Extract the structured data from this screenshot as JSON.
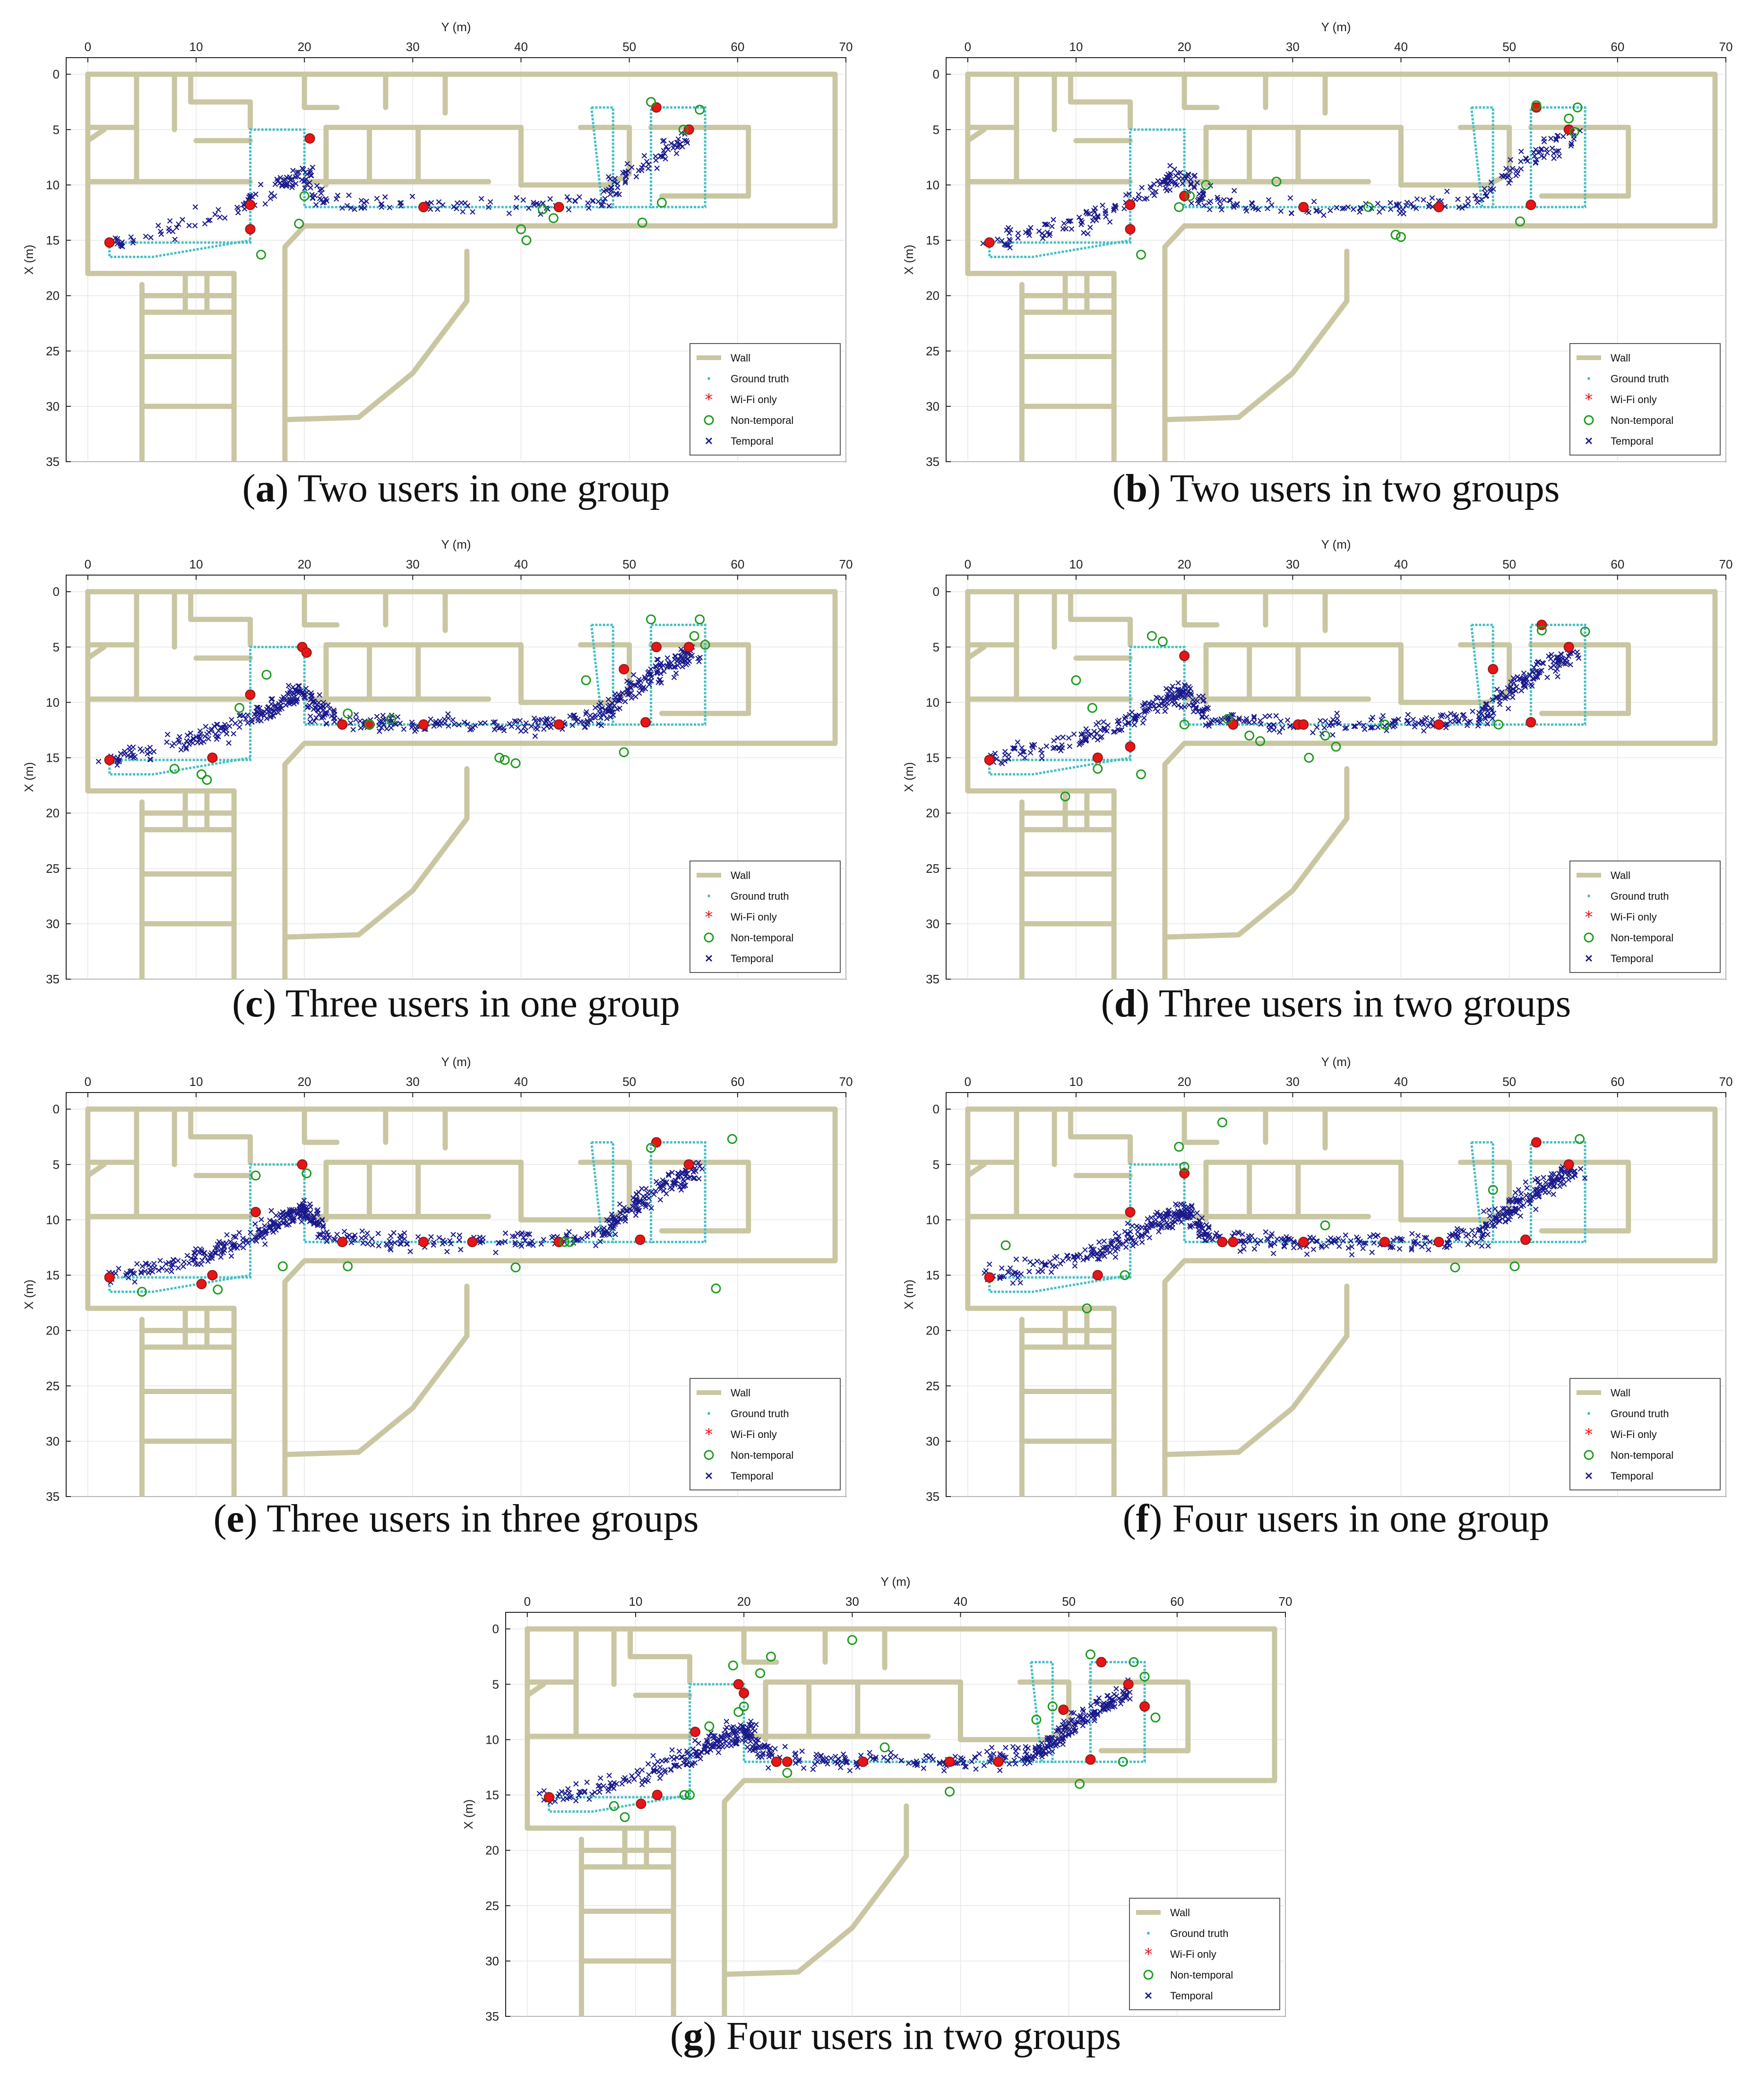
{
  "legend": [
    "Wall",
    "Ground truth",
    "Wi-Fi only",
    "Non-temporal",
    "Temporal"
  ],
  "colors": {
    "wall": "#c9c6a2",
    "ground_truth": "#45bfc6",
    "wifi_only": "#e8141a",
    "non_temporal": "#1c9a1c",
    "temporal": "#1a1a8c"
  },
  "chart_data": [
    {
      "type": "scatter",
      "caption_letter": "a",
      "caption_text": "Two users in one group",
      "xlabel": "Y (m)",
      "ylabel": "X (m)",
      "xlim": [
        -2,
        70
      ],
      "ylim": [
        35,
        -1.5
      ],
      "xticks": [
        "0",
        "10",
        "20",
        "30",
        "40",
        "50",
        "60",
        "70"
      ],
      "yticks": [
        "0",
        "5",
        "10",
        "15",
        "20",
        "25",
        "30",
        "35"
      ],
      "grid": true,
      "legend_position": "bottom-right",
      "series": [
        {
          "name": "Wi-Fi only",
          "points": [
            [
              2,
              15.2
            ],
            [
              15,
              11.8
            ],
            [
              15,
              14
            ],
            [
              20.5,
              5.8
            ],
            [
              31,
              12
            ],
            [
              43.5,
              12
            ],
            [
              52.5,
              3
            ],
            [
              55.5,
              5
            ]
          ]
        },
        {
          "name": "Non-temporal",
          "points": [
            [
              16,
              16.3
            ],
            [
              19.5,
              13.5
            ],
            [
              20,
              11
            ],
            [
              40,
              14
            ],
            [
              40.5,
              15
            ],
            [
              42,
              12.2
            ],
            [
              43,
              13
            ],
            [
              52,
              2.5
            ],
            [
              55,
              5
            ],
            [
              56.5,
              3.2
            ],
            [
              51.2,
              13.4
            ],
            [
              53,
              11.6
            ]
          ]
        }
      ]
    },
    {
      "type": "scatter",
      "caption_letter": "b",
      "caption_text": "Two users in two groups",
      "xlabel": "Y (m)",
      "ylabel": "X (m)",
      "xlim": [
        -2,
        70
      ],
      "ylim": [
        35,
        -1.5
      ],
      "xticks": [
        "0",
        "10",
        "20",
        "30",
        "40",
        "50",
        "60",
        "70"
      ],
      "yticks": [
        "0",
        "5",
        "10",
        "15",
        "20",
        "25",
        "30",
        "35"
      ],
      "grid": true,
      "legend_position": "bottom-right",
      "series": [
        {
          "name": "Wi-Fi only",
          "points": [
            [
              2,
              15.2
            ],
            [
              15,
              11.8
            ],
            [
              15,
              14
            ],
            [
              20,
              11
            ],
            [
              31,
              12
            ],
            [
              43.5,
              12
            ],
            [
              52,
              11.8
            ],
            [
              52.5,
              3
            ],
            [
              55.5,
              5
            ]
          ]
        },
        {
          "name": "Non-temporal",
          "points": [
            [
              16,
              16.3
            ],
            [
              19.5,
              12
            ],
            [
              20.5,
              11
            ],
            [
              22,
              10
            ],
            [
              28.5,
              9.7
            ],
            [
              37,
              12
            ],
            [
              39.5,
              14.5
            ],
            [
              40,
              14.7
            ],
            [
              51,
              13.3
            ],
            [
              52.5,
              2.8
            ],
            [
              55.5,
              4
            ],
            [
              56.3,
              3
            ],
            [
              56,
              5.2
            ]
          ]
        }
      ]
    },
    {
      "type": "scatter",
      "caption_letter": "c",
      "caption_text": "Three users in one group",
      "xlabel": "Y (m)",
      "ylabel": "X (m)",
      "xlim": [
        -2,
        70
      ],
      "ylim": [
        35,
        -1.5
      ],
      "xticks": [
        "0",
        "10",
        "20",
        "30",
        "40",
        "50",
        "60",
        "70"
      ],
      "yticks": [
        "0",
        "5",
        "10",
        "15",
        "20",
        "25",
        "30",
        "35"
      ],
      "grid": true,
      "legend_position": "bottom-right",
      "series": [
        {
          "name": "Wi-Fi only",
          "points": [
            [
              2,
              15.2
            ],
            [
              11.5,
              15
            ],
            [
              15,
              9.3
            ],
            [
              19.8,
              5
            ],
            [
              20.2,
              5.5
            ],
            [
              23.5,
              12
            ],
            [
              26,
              12
            ],
            [
              31,
              12
            ],
            [
              43.5,
              12
            ],
            [
              49.5,
              7
            ],
            [
              51.5,
              11.8
            ],
            [
              52.5,
              5
            ],
            [
              55.5,
              5
            ]
          ]
        },
        {
          "name": "Non-temporal",
          "points": [
            [
              8,
              16
            ],
            [
              10.5,
              16.5
            ],
            [
              11,
              17
            ],
            [
              14,
              10.5
            ],
            [
              16.5,
              7.5
            ],
            [
              24,
              11
            ],
            [
              26,
              12
            ],
            [
              28,
              11.5
            ],
            [
              38,
              15
            ],
            [
              38.5,
              15.2
            ],
            [
              39.5,
              15.5
            ],
            [
              46,
              8
            ],
            [
              49.5,
              14.5
            ],
            [
              52,
              2.5
            ],
            [
              56,
              4
            ],
            [
              56.5,
              2.5
            ],
            [
              57,
              4.8
            ]
          ]
        }
      ]
    },
    {
      "type": "scatter",
      "caption_letter": "d",
      "caption_text": "Three users in two groups",
      "xlabel": "Y (m)",
      "ylabel": "X (m)",
      "xlim": [
        -2,
        70
      ],
      "ylim": [
        35,
        -1.5
      ],
      "xticks": [
        "0",
        "10",
        "20",
        "30",
        "40",
        "50",
        "60",
        "70"
      ],
      "yticks": [
        "0",
        "5",
        "10",
        "15",
        "20",
        "25",
        "30",
        "35"
      ],
      "grid": true,
      "legend_position": "bottom-right",
      "series": [
        {
          "name": "Wi-Fi only",
          "points": [
            [
              2,
              15.2
            ],
            [
              12,
              15
            ],
            [
              15,
              14
            ],
            [
              20,
              5.8
            ],
            [
              24.5,
              12
            ],
            [
              30.5,
              12
            ],
            [
              31,
              12
            ],
            [
              43.5,
              12
            ],
            [
              48.5,
              7
            ],
            [
              52,
              11.8
            ],
            [
              53,
              3
            ],
            [
              55.5,
              5
            ]
          ]
        },
        {
          "name": "Non-temporal",
          "points": [
            [
              10,
              8
            ],
            [
              11.5,
              10.5
            ],
            [
              12,
              16
            ],
            [
              9,
              18.5
            ],
            [
              16,
              16.5
            ],
            [
              17,
              4
            ],
            [
              18,
              4.5
            ],
            [
              20,
              12
            ],
            [
              24,
              11.5
            ],
            [
              26,
              13
            ],
            [
              27,
              13.5
            ],
            [
              31.5,
              15
            ],
            [
              33,
              13
            ],
            [
              34,
              14
            ],
            [
              38.5,
              12
            ],
            [
              49,
              12
            ],
            [
              53,
              3.5
            ],
            [
              57,
              3.6
            ]
          ]
        }
      ]
    },
    {
      "type": "scatter",
      "caption_letter": "e",
      "caption_text": "Three users in three groups",
      "xlabel": "Y (m)",
      "ylabel": "X (m)",
      "xlim": [
        -2,
        70
      ],
      "ylim": [
        35,
        -1.5
      ],
      "xticks": [
        "0",
        "10",
        "20",
        "30",
        "40",
        "50",
        "60",
        "70"
      ],
      "yticks": [
        "0",
        "5",
        "10",
        "15",
        "20",
        "25",
        "30",
        "35"
      ],
      "grid": true,
      "legend_position": "bottom-right",
      "series": [
        {
          "name": "Wi-Fi only",
          "points": [
            [
              2,
              15.2
            ],
            [
              10.5,
              15.8
            ],
            [
              11.5,
              15
            ],
            [
              15.5,
              9.3
            ],
            [
              19.8,
              5
            ],
            [
              23.5,
              12
            ],
            [
              31,
              12
            ],
            [
              35.5,
              12
            ],
            [
              43.5,
              12
            ],
            [
              51,
              11.8
            ],
            [
              52.5,
              3
            ],
            [
              55.5,
              5
            ]
          ]
        },
        {
          "name": "Non-temporal",
          "points": [
            [
              5,
              16.5
            ],
            [
              12,
              16.3
            ],
            [
              15.5,
              6
            ],
            [
              18,
              14.2
            ],
            [
              20.2,
              5.8
            ],
            [
              24,
              14.2
            ],
            [
              39.5,
              14.3
            ],
            [
              44,
              12
            ],
            [
              44.5,
              12
            ],
            [
              52,
              3.5
            ],
            [
              58,
              16.2
            ],
            [
              59.5,
              2.7
            ]
          ]
        }
      ]
    },
    {
      "type": "scatter",
      "caption_letter": "f",
      "caption_text": "Four users in one group",
      "xlabel": "Y (m)",
      "ylabel": "X (m)",
      "xlim": [
        -2,
        70
      ],
      "ylim": [
        35,
        -1.5
      ],
      "xticks": [
        "0",
        "10",
        "20",
        "30",
        "40",
        "50",
        "60",
        "70"
      ],
      "yticks": [
        "0",
        "5",
        "10",
        "15",
        "20",
        "25",
        "30",
        "35"
      ],
      "grid": true,
      "legend_position": "bottom-right",
      "series": [
        {
          "name": "Wi-Fi only",
          "points": [
            [
              2,
              15.2
            ],
            [
              12,
              15
            ],
            [
              15,
              9.3
            ],
            [
              20,
              5.8
            ],
            [
              23.5,
              12
            ],
            [
              24.5,
              12
            ],
            [
              31,
              12
            ],
            [
              38.5,
              12
            ],
            [
              43.5,
              12
            ],
            [
              51.5,
              11.8
            ],
            [
              52.5,
              3
            ],
            [
              55.5,
              5
            ]
          ]
        },
        {
          "name": "Non-temporal",
          "points": [
            [
              3.5,
              12.3
            ],
            [
              11,
              18
            ],
            [
              14.5,
              15
            ],
            [
              19.5,
              3.4
            ],
            [
              20,
              5.2
            ],
            [
              23.5,
              1.2
            ],
            [
              33,
              10.5
            ],
            [
              45,
              14.3
            ],
            [
              48.5,
              7.3
            ],
            [
              50.5,
              14.2
            ],
            [
              56.5,
              2.7
            ]
          ]
        }
      ]
    },
    {
      "type": "scatter",
      "caption_letter": "g",
      "caption_text": "Four users in two groups",
      "xlabel": "Y (m)",
      "ylabel": "X (m)",
      "xlim": [
        -2,
        70
      ],
      "ylim": [
        35,
        -1.5
      ],
      "xticks": [
        "0",
        "10",
        "20",
        "30",
        "40",
        "50",
        "60",
        "70"
      ],
      "yticks": [
        "0",
        "5",
        "10",
        "15",
        "20",
        "25",
        "30",
        "35"
      ],
      "grid": true,
      "legend_position": "bottom-right",
      "series": [
        {
          "name": "Wi-Fi only",
          "points": [
            [
              2,
              15.2
            ],
            [
              10.5,
              15.8
            ],
            [
              12,
              15
            ],
            [
              15.5,
              9.3
            ],
            [
              19.5,
              5
            ],
            [
              20,
              5.8
            ],
            [
              23,
              12
            ],
            [
              24,
              12
            ],
            [
              31,
              12
            ],
            [
              39,
              12
            ],
            [
              43.5,
              12
            ],
            [
              49.5,
              7.3
            ],
            [
              52,
              11.8
            ],
            [
              53,
              3
            ],
            [
              55.5,
              5
            ],
            [
              57,
              7
            ]
          ]
        },
        {
          "name": "Non-temporal",
          "points": [
            [
              8,
              16
            ],
            [
              9,
              17
            ],
            [
              14.5,
              15
            ],
            [
              15,
              15
            ],
            [
              16.8,
              8.8
            ],
            [
              19,
              3.3
            ],
            [
              19.5,
              7.5
            ],
            [
              20,
              7
            ],
            [
              21.5,
              4
            ],
            [
              22.5,
              2.5
            ],
            [
              24,
              13
            ],
            [
              30,
              1
            ],
            [
              33,
              10.7
            ],
            [
              39,
              14.7
            ],
            [
              47,
              8.2
            ],
            [
              48.5,
              7
            ],
            [
              51,
              14
            ],
            [
              52,
              2.3
            ],
            [
              55,
              12
            ],
            [
              56,
              3
            ],
            [
              57,
              4.3
            ],
            [
              58,
              8
            ]
          ]
        }
      ]
    }
  ]
}
